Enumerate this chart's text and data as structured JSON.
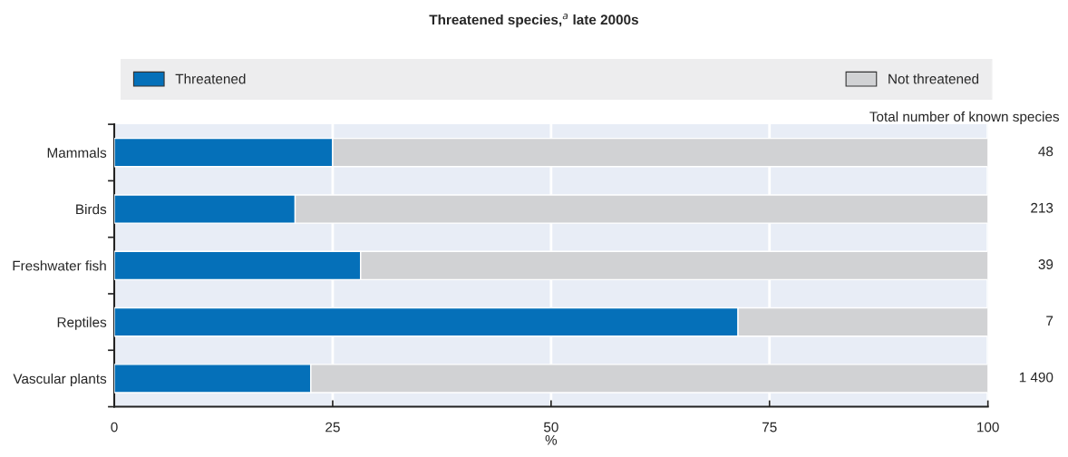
{
  "chart_data": {
    "type": "bar",
    "orientation": "horizontal",
    "stacked": true,
    "title": "Threatened species,$^{a}$ late 2000s",
    "xlabel": "%",
    "categories": [
      "Mammals",
      "Birds",
      "Freshwater fish",
      "Reptiles",
      "Vascular plants"
    ],
    "series": [
      {
        "name": "Threatened",
        "color": "#0570b9",
        "values": [
          25.0,
          20.7,
          28.2,
          71.4,
          22.5
        ]
      },
      {
        "name": "Not threatened",
        "color": "#d1d2d4",
        "values": [
          75.0,
          79.3,
          71.8,
          28.6,
          77.5
        ]
      }
    ],
    "xlim": [
      0,
      100
    ],
    "xticks": [
      0,
      25,
      50,
      75,
      100
    ],
    "grid": "x",
    "legend": "top",
    "annotations": [
      "Total number of known species",
      "48",
      "213",
      "39",
      "7",
      "1 490"
    ]
  }
}
